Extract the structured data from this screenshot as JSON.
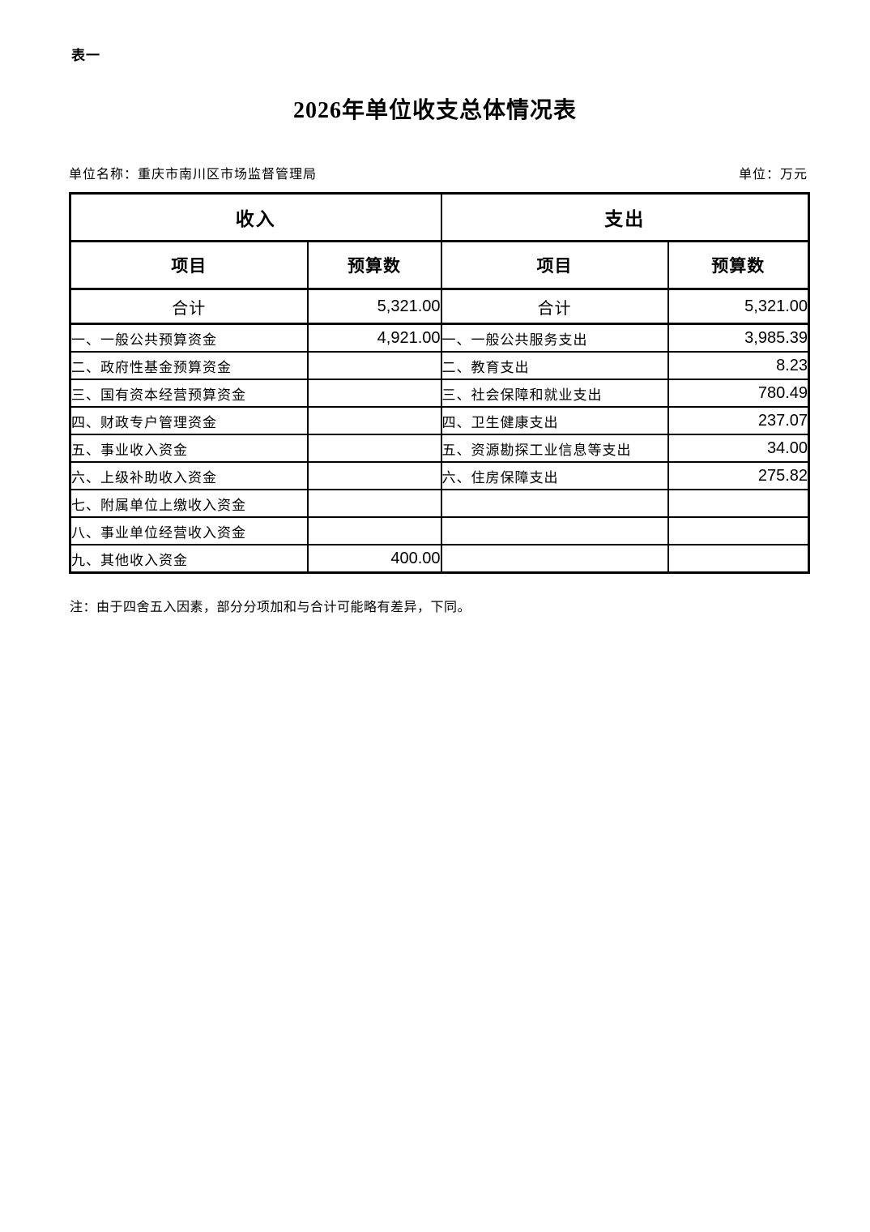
{
  "page": {
    "table_label": "表一",
    "title": "2026年单位收支总体情况表",
    "unit_name": "单位名称：重庆市南川区市场监督管理局",
    "unit_of_measure": "单位：万元",
    "note": "注：由于四舍五入因素，部分分项加和与合计可能略有差异，下同。"
  },
  "table": {
    "income_header": "收入",
    "expense_header": "支出",
    "income_col_item": "项目",
    "income_col_budget": "预算数",
    "expense_col_item": "项目",
    "expense_col_budget": "预算数",
    "rows": [
      {
        "is_total": true,
        "income_item": "合计",
        "income_value": "5,321.00",
        "expense_item": "合计",
        "expense_value": "5,321.00"
      },
      {
        "is_total": false,
        "income_item": "一、一般公共预算资金",
        "income_value": "4,921.00",
        "expense_item": "一、一般公共服务支出",
        "expense_value": "3,985.39"
      },
      {
        "is_total": false,
        "income_item": "二、政府性基金预算资金",
        "income_value": "",
        "expense_item": "二、教育支出",
        "expense_value": "8.23"
      },
      {
        "is_total": false,
        "income_item": "三、国有资本经营预算资金",
        "income_value": "",
        "expense_item": "三、社会保障和就业支出",
        "expense_value": "780.49"
      },
      {
        "is_total": false,
        "income_item": "四、财政专户管理资金",
        "income_value": "",
        "expense_item": "四、卫生健康支出",
        "expense_value": "237.07"
      },
      {
        "is_total": false,
        "income_item": "五、事业收入资金",
        "income_value": "",
        "expense_item": "五、资源勘探工业信息等支出",
        "expense_value": "34.00"
      },
      {
        "is_total": false,
        "income_item": "六、上级补助收入资金",
        "income_value": "",
        "expense_item": "六、住房保障支出",
        "expense_value": "275.82"
      },
      {
        "is_total": false,
        "income_item": "七、附属单位上缴收入资金",
        "income_value": "",
        "expense_item": "",
        "expense_value": ""
      },
      {
        "is_total": false,
        "income_item": "八、事业单位经营收入资金",
        "income_value": "",
        "expense_item": "",
        "expense_value": ""
      },
      {
        "is_total": false,
        "income_item": "九、其他收入资金",
        "income_value": "400.00",
        "expense_item": "",
        "expense_value": ""
      }
    ]
  }
}
